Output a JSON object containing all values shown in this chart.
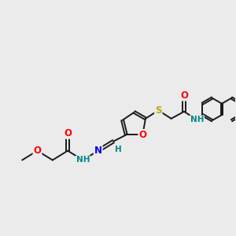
{
  "bg_color": "#ebebeb",
  "bond_color": "#1a1a1a",
  "bond_width": 1.4,
  "atom_colors": {
    "O": "#ff0000",
    "N": "#0000ee",
    "S": "#bbaa00",
    "H": "#008888",
    "C": "#1a1a1a"
  },
  "fs": 8.5,
  "fsh": 7.5
}
